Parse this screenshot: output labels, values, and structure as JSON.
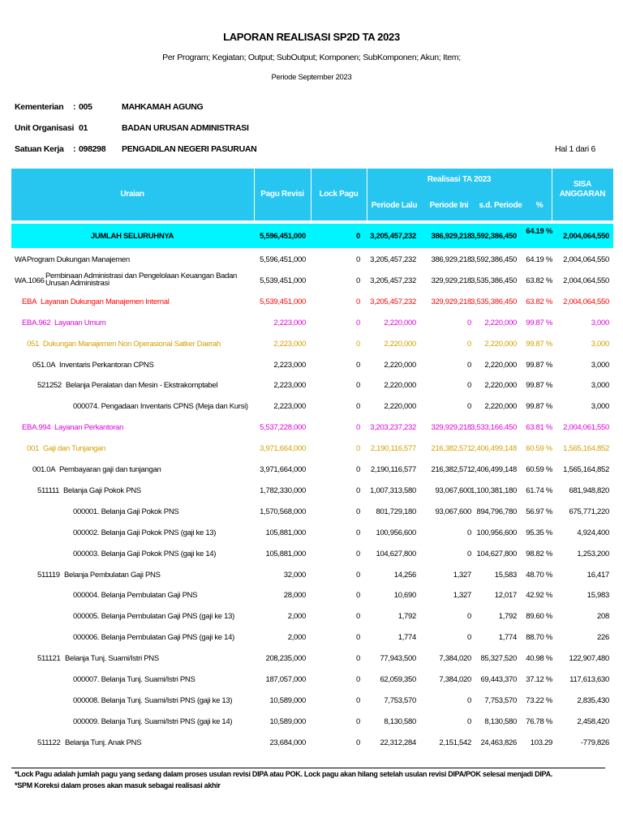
{
  "header": {
    "title": "LAPORAN REALISASI SP2D TA 2023",
    "subtitle": "Per Program; Kegiatan; Output; SubOutput; Komponen; SubKomponen; Akun; Item;",
    "period": "Periode September 2023"
  },
  "info": [
    {
      "label": "Kementerian",
      "sep": ":",
      "code": "005",
      "name": "MAHKAMAH AGUNG"
    },
    {
      "label": "Unit Organisasi",
      "code": "01",
      "name": "BADAN URUSAN ADMINISTRASI"
    },
    {
      "label": "Satuan Kerja",
      "sep": ":",
      "code": "098298",
      "name": "PENGADILAN NEGERI PASURUAN"
    }
  ],
  "page": "Hal 1 dari 6",
  "table": {
    "columns": {
      "uraian": "Uraian",
      "pagu": "Pagu Revisi",
      "lock": "Lock Pagu",
      "realisasi": "Realisasi TA 2023",
      "lalu": "Periode Lalu",
      "ini": "Periode Ini",
      "sd": "s.d. Periode",
      "pct": "%",
      "sisa": [
        "SISA",
        "ANGGARAN"
      ]
    },
    "total": {
      "name": "JUMLAH SELURUHNYA",
      "values": [
        "5,596,451,000",
        "0",
        "3,205,457,232",
        "386,929,218",
        "3,592,386,450",
        "64.19 %",
        "2,004,064,550"
      ]
    },
    "rows": [
      {
        "code": "WA",
        "name": "Program Dukungan Manajemen",
        "values": [
          "5,596,451,000",
          "0",
          "3,205,457,232",
          "386,929,218",
          "3,592,386,450",
          "64.19 %",
          "2,004,064,550"
        ]
      },
      {
        "code": "WA.1066",
        "name": "Pembinaan Administrasi dan Pengelolaan Keuangan Badan Urusan Administrasi",
        "values": [
          "5,539,451,000",
          "0",
          "3,205,457,232",
          "329,929,218",
          "3,535,386,450",
          "63.82 %",
          "2,004,064,550"
        ]
      },
      {
        "code": "EBA",
        "name": "Layanan Dukungan Manajemen Internal",
        "values": [
          "5,539,451,000",
          "0",
          "3,205,457,232",
          "329,929,218",
          "3,535,386,450",
          "63.82 %",
          "2,004,064,550"
        ]
      },
      {
        "code": "EBA.962",
        "name": "Layanan Umum",
        "values": [
          "2,223,000",
          "0",
          "2,220,000",
          "0",
          "2,220,000",
          "99.87 %",
          "3,000"
        ]
      },
      {
        "code": "051",
        "name": "Dukungan Manajemen Non Operasional Satker Daerah",
        "values": [
          "2,223,000",
          "0",
          "2,220,000",
          "0",
          "2,220,000",
          "99.87 %",
          "3,000"
        ]
      },
      {
        "code": "051.0A",
        "name": "Inventaris Perkantoran CPNS",
        "values": [
          "2,223,000",
          "0",
          "2,220,000",
          "0",
          "2,220,000",
          "99.87 %",
          "3,000"
        ]
      },
      {
        "code": "521252",
        "name": "Belanja Peralatan dan Mesin - Ekstrakomptabel",
        "values": [
          "2,223,000",
          "0",
          "2,220,000",
          "0",
          "2,220,000",
          "99.87 %",
          "3,000"
        ]
      },
      {
        "name": "000074. Pengadaan Inventaris CPNS (Meja dan Kursi)",
        "values": [
          "2,223,000",
          "0",
          "2,220,000",
          "0",
          "2,220,000",
          "99.87 %",
          "3,000"
        ]
      },
      {
        "code": "EBA.994",
        "name": "Layanan Perkantoran",
        "values": [
          "5,537,228,000",
          "0",
          "3,203,237,232",
          "329,929,218",
          "3,533,166,450",
          "63.81 %",
          "2,004,061,550"
        ]
      },
      {
        "code": "001",
        "name": "Gaji dan Tunjangan",
        "values": [
          "3,971,664,000",
          "0",
          "2,190,116,577",
          "216,382,571",
          "2,406,499,148",
          "60.59 %",
          "1,565,164,852"
        ]
      },
      {
        "code": "001.0A",
        "name": "Pembayaran gaji dan tunjangan",
        "values": [
          "3,971,664,000",
          "0",
          "2,190,116,577",
          "216,382,571",
          "2,406,499,148",
          "60.59 %",
          "1,565,164,852"
        ]
      },
      {
        "code": "511111",
        "name": "Belanja Gaji Pokok PNS",
        "values": [
          "1,782,330,000",
          "0",
          "1,007,313,580",
          "93,067,600",
          "1,100,381,180",
          "61.74 %",
          "681,948,820"
        ]
      },
      {
        "name": "000001. Belanja Gaji Pokok PNS",
        "values": [
          "1,570,568,000",
          "0",
          "801,729,180",
          "93,067,600",
          "894,796,780",
          "56.97 %",
          "675,771,220"
        ]
      },
      {
        "name": "000002. Belanja Gaji Pokok PNS (gaji ke 13)",
        "values": [
          "105,881,000",
          "0",
          "100,956,600",
          "0",
          "100,956,600",
          "95.35 %",
          "4,924,400"
        ]
      },
      {
        "name": "000003. Belanja Gaji Pokok PNS (gaji ke 14)",
        "values": [
          "105,881,000",
          "0",
          "104,627,800",
          "0",
          "104,627,800",
          "98.82 %",
          "1,253,200"
        ]
      },
      {
        "code": "511119",
        "name": "Belanja Pembulatan Gaji PNS",
        "values": [
          "32,000",
          "0",
          "14,256",
          "1,327",
          "15,583",
          "48.70 %",
          "16,417"
        ]
      },
      {
        "name": "000004. Belanja Pembulatan Gaji PNS",
        "values": [
          "28,000",
          "0",
          "10,690",
          "1,327",
          "12,017",
          "42.92 %",
          "15,983"
        ]
      },
      {
        "name": "000005. Belanja Pembulatan Gaji PNS (gaji ke 13)",
        "values": [
          "2,000",
          "0",
          "1,792",
          "0",
          "1,792",
          "89.60 %",
          "208"
        ]
      },
      {
        "name": "000006. Belanja Pembulatan Gaji PNS (gaji ke 14)",
        "values": [
          "2,000",
          "0",
          "1,774",
          "0",
          "1,774",
          "88.70 %",
          "226"
        ]
      },
      {
        "code": "511121",
        "name": "Belanja Tunj. Suami/Istri PNS",
        "values": [
          "208,235,000",
          "0",
          "77,943,500",
          "7,384,020",
          "85,327,520",
          "40.98 %",
          "122,907,480"
        ]
      },
      {
        "name": "000007. Belanja Tunj. Suami/Istri PNS",
        "values": [
          "187,057,000",
          "0",
          "62,059,350",
          "7,384,020",
          "69,443,370",
          "37.12 %",
          "117,613,630"
        ]
      },
      {
        "name": "000008. Belanja Tunj. Suami/Istri PNS (gaji ke 13)",
        "values": [
          "10,589,000",
          "0",
          "7,753,570",
          "0",
          "7,753,570",
          "73.22 %",
          "2,835,430"
        ]
      },
      {
        "name": "000009. Belanja Tunj. Suami/Istri PNS (gaji ke 14)",
        "values": [
          "10,589,000",
          "0",
          "8,130,580",
          "0",
          "8,130,580",
          "76.78 %",
          "2,458,420"
        ]
      },
      {
        "code": "511122",
        "name": "Belanja Tunj. Anak PNS",
        "values": [
          "23,684,000",
          "0",
          "22,312,284",
          "2,151,542",
          "24,463,826",
          "103.29",
          "-779,826"
        ]
      }
    ]
  },
  "footnotes": [
    "*Lock Pagu adalah jumlah pagu yang sedang dalam proses usulan revisi DIPA atau POK. Lock pagu akan hilang setelah usulan revisi DIPA/POK selesai menjadi DIPA.",
    "*SPM Koreksi dalam proses akan masuk sebagai realisasi akhir"
  ]
}
